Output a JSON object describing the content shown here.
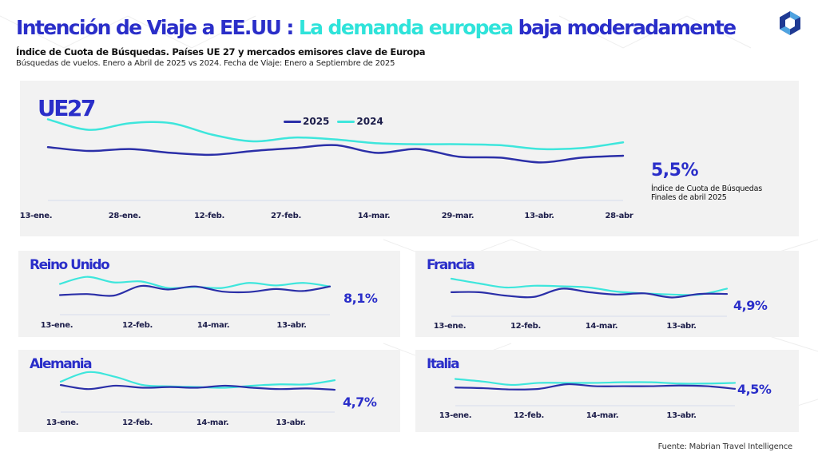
{
  "header": {
    "title_part1": "Intención de Viaje a EE.UU : ",
    "title_part2": "La demanda europea",
    "title_part3": " baja moderadamente",
    "subtitle": "Índice de Cuota de Búsquedas. Países UE 27 y mercados emisores clave de Europa",
    "subtitle2": "Búsquedas de vuelos. Enero a Abril de 2025 vs 2024. Fecha de Viaje: Enero a Septiembre de 2025"
  },
  "logo": {
    "icon": "hexagon-logo-icon"
  },
  "colors": {
    "series_2025": "#2b2fa8",
    "series_2024": "#3ee6dc",
    "accent": "#2a2ec9",
    "panel_bg": "#f2f2f2"
  },
  "main_panel": {
    "value": "5,5%",
    "value_desc_line1": "Índice de Cuota de Búsquedas",
    "value_desc_line2": "Finales de abril 2025"
  },
  "footer": {
    "source": "Fuente: Mabrian Travel Intelligence"
  },
  "chart_data": [
    {
      "type": "line",
      "title": "UE27",
      "x": [
        "13-ene.",
        "28-ene.",
        "12-feb.",
        "27-feb.",
        "14-mar.",
        "29-mar.",
        "13-abr.",
        "28-abr"
      ],
      "legend": [
        "2025",
        "2024"
      ],
      "legend_position": "top-center",
      "ylim": [
        0,
        10
      ],
      "series": [
        {
          "name": "2025",
          "values": [
            6.4,
            6.0,
            6.2,
            5.8,
            5.6,
            6.0,
            6.3,
            6.6,
            5.8,
            6.2,
            5.4,
            5.3,
            4.8,
            5.3,
            5.5
          ]
        },
        {
          "name": "2024",
          "values": [
            9.3,
            8.2,
            8.9,
            8.9,
            7.7,
            7.0,
            7.4,
            7.2,
            6.8,
            6.7,
            6.7,
            6.6,
            6.2,
            6.3,
            6.9
          ]
        }
      ],
      "final_value": "5,5%"
    },
    {
      "type": "line",
      "title": "Reino Unido",
      "x": [
        "13-ene.",
        "12-feb.",
        "14-mar.",
        "13-abr."
      ],
      "ylim": [
        0,
        12
      ],
      "series": [
        {
          "name": "2025",
          "values": [
            6.4,
            6.6,
            6.3,
            8.2,
            7.5,
            8.1,
            7.1,
            7.0,
            7.6,
            7.2,
            8.1
          ]
        },
        {
          "name": "2024",
          "values": [
            8.6,
            10.0,
            8.9,
            9.1,
            7.8,
            8.0,
            7.8,
            8.8,
            8.3,
            8.8,
            8.1
          ]
        }
      ],
      "final_value": "8,1%"
    },
    {
      "type": "line",
      "title": "Francia",
      "x": [
        "13-ene.",
        "12-feb.",
        "14-mar.",
        "13-abr."
      ],
      "ylim": [
        0,
        9
      ],
      "series": [
        {
          "name": "2025",
          "values": [
            5.2,
            5.2,
            4.6,
            4.4,
            5.8,
            5.2,
            4.8,
            5.0,
            4.3,
            4.9,
            4.9
          ]
        },
        {
          "name": "2024",
          "values": [
            7.5,
            6.7,
            6.0,
            6.3,
            6.2,
            6.0,
            5.3,
            5.0,
            4.8,
            4.8,
            5.8
          ]
        }
      ],
      "final_value": "4,9%"
    },
    {
      "type": "line",
      "title": "Alemania",
      "x": [
        "13-ene.",
        "12-feb.",
        "14-mar.",
        "13-abr."
      ],
      "ylim": [
        0,
        8
      ],
      "series": [
        {
          "name": "2025",
          "values": [
            5.4,
            4.8,
            5.3,
            5.0,
            5.1,
            5.0,
            5.3,
            5.0,
            4.8,
            4.9,
            4.7
          ]
        },
        {
          "name": "2024",
          "values": [
            5.9,
            7.3,
            6.6,
            5.4,
            5.2,
            5.1,
            5.0,
            5.3,
            5.5,
            5.5,
            6.1
          ]
        }
      ],
      "final_value": "4,7%"
    },
    {
      "type": "line",
      "title": "Italia",
      "x": [
        "13-ene.",
        "12-feb.",
        "14-mar.",
        "13-abr."
      ],
      "ylim": [
        0,
        8
      ],
      "series": [
        {
          "name": "2025",
          "values": [
            4.7,
            4.6,
            4.4,
            4.5,
            5.2,
            4.9,
            4.9,
            4.9,
            5.0,
            4.9,
            4.5
          ]
        },
        {
          "name": "2024",
          "values": [
            6.0,
            5.6,
            5.1,
            5.4,
            5.4,
            5.4,
            5.5,
            5.5,
            5.3,
            5.3,
            5.4
          ]
        }
      ],
      "final_value": "4,5%"
    }
  ]
}
